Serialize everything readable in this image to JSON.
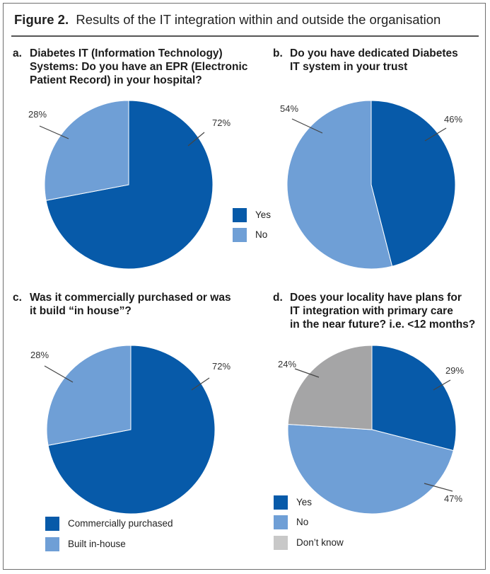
{
  "figure": {
    "number": "Figure 2.",
    "title": "Results of the IT integration within and outside the organisation"
  },
  "colors": {
    "dark_blue": "#075aa9",
    "light_blue": "#6f9fd6",
    "grey": "#a5a5a6",
    "legend_grey": "#c8c8c8"
  },
  "panels": {
    "a": {
      "letter": "a.",
      "line1": "Diabetes IT (Information Technology)",
      "line2": "Systems: Do you have an EPR (Electronic",
      "line3": "Patient Record) in your hospital?"
    },
    "b": {
      "letter": "b.",
      "line1": "Do you have dedicated Diabetes",
      "line2": "IT system in your trust"
    },
    "c": {
      "letter": "c.",
      "line1": "Was it commercially purchased or was",
      "line2": "it build “in house”?"
    },
    "d": {
      "letter": "d.",
      "line1": "Does your locality have plans for",
      "line2": "IT integration with primary care",
      "line3": "in the near future? i.e. <12 months?"
    }
  },
  "legends": {
    "ab": [
      "Yes",
      "No"
    ],
    "c": [
      "Commercially purchased",
      "Built in-house"
    ],
    "d": [
      "Yes",
      "No",
      "Don’t know"
    ]
  },
  "chart_data": [
    {
      "type": "pie",
      "panel": "a",
      "title": "Diabetes IT (Information Technology) Systems: Do you have an EPR (Electronic Patient Record) in your hospital?",
      "categories": [
        "Yes",
        "No"
      ],
      "values": [
        72,
        28
      ],
      "labels": [
        "72%",
        "28%"
      ],
      "colors": [
        "#075aa9",
        "#6f9fd6"
      ],
      "legend": [
        "Yes",
        "No"
      ]
    },
    {
      "type": "pie",
      "panel": "b",
      "title": "Do you have dedicated Diabetes IT system in your trust",
      "categories": [
        "Yes",
        "No"
      ],
      "values": [
        46,
        54
      ],
      "labels": [
        "46%",
        "54%"
      ],
      "colors": [
        "#075aa9",
        "#6f9fd6"
      ],
      "legend": [
        "Yes",
        "No"
      ]
    },
    {
      "type": "pie",
      "panel": "c",
      "title": "Was it commercially purchased or was it build “in house”?",
      "categories": [
        "Commercially purchased",
        "Built in-house"
      ],
      "values": [
        72,
        28
      ],
      "labels": [
        "72%",
        "28%"
      ],
      "colors": [
        "#075aa9",
        "#6f9fd6"
      ],
      "legend": [
        "Commercially purchased",
        "Built in-house"
      ]
    },
    {
      "type": "pie",
      "panel": "d",
      "title": "Does your locality have plans for IT integration with primary care in the near future? i.e. <12 months?",
      "categories": [
        "Yes",
        "No",
        "Don’t know"
      ],
      "values": [
        29,
        47,
        24
      ],
      "labels": [
        "29%",
        "47%",
        "24%"
      ],
      "colors": [
        "#075aa9",
        "#6f9fd6",
        "#a5a5a6"
      ],
      "legend": [
        "Yes",
        "No",
        "Don’t know"
      ]
    }
  ]
}
